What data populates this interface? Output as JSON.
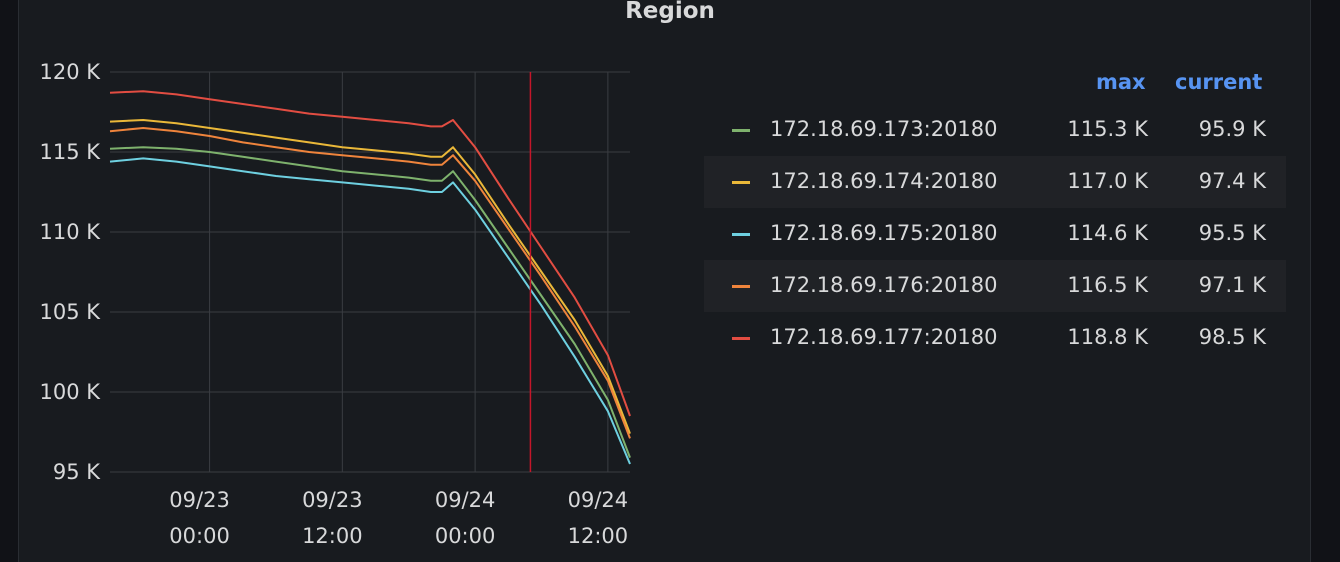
{
  "panel": {
    "title": "Region"
  },
  "chart_data": {
    "type": "line",
    "title": "Region",
    "xlabel": "",
    "ylabel": "",
    "ylim": [
      95000,
      120000
    ],
    "yticks": [
      "120 K",
      "115 K",
      "110 K",
      "105 K",
      "100 K",
      "95 K"
    ],
    "xticks": [
      {
        "date": "09/23",
        "time": "00:00"
      },
      {
        "date": "09/23",
        "time": "12:00"
      },
      {
        "date": "09/24",
        "time": "00:00"
      },
      {
        "date": "09/24",
        "time": "12:00"
      }
    ],
    "x": [
      "09/22 15:00",
      "09/22 18:00",
      "09/22 21:00",
      "09/23 00:00",
      "09/23 03:00",
      "09/23 06:00",
      "09/23 09:00",
      "09/23 12:00",
      "09/23 15:00",
      "09/23 18:00",
      "09/23 20:00",
      "09/23 21:00",
      "09/23 22:00",
      "09/24 00:00",
      "09/24 03:00",
      "09/24 06:00",
      "09/24 09:00",
      "09/24 12:00",
      "09/24 14:00"
    ],
    "grid": true,
    "series": [
      {
        "name": "172.18.69.173:20180",
        "color": "#7eb26d",
        "values": [
          115.2,
          115.3,
          115.2,
          115.0,
          114.7,
          114.4,
          114.1,
          113.8,
          113.6,
          113.4,
          113.2,
          113.2,
          113.8,
          112.0,
          109.0,
          106.0,
          103.0,
          99.5,
          95.9
        ]
      },
      {
        "name": "172.18.69.174:20180",
        "color": "#eab839",
        "values": [
          116.9,
          117.0,
          116.8,
          116.5,
          116.2,
          115.9,
          115.6,
          115.3,
          115.1,
          114.9,
          114.7,
          114.7,
          115.3,
          113.6,
          110.5,
          107.5,
          104.5,
          101.0,
          97.4
        ]
      },
      {
        "name": "172.18.69.175:20180",
        "color": "#6ed0e0",
        "values": [
          114.4,
          114.6,
          114.4,
          114.1,
          113.8,
          113.5,
          113.3,
          113.1,
          112.9,
          112.7,
          112.5,
          112.5,
          113.1,
          111.4,
          108.4,
          105.4,
          102.2,
          98.8,
          95.5
        ]
      },
      {
        "name": "172.18.69.176:20180",
        "color": "#ef843c",
        "values": [
          116.3,
          116.5,
          116.3,
          116.0,
          115.6,
          115.3,
          115.0,
          114.8,
          114.6,
          114.4,
          114.2,
          114.2,
          114.8,
          113.2,
          110.2,
          107.2,
          104.1,
          100.7,
          97.1
        ]
      },
      {
        "name": "172.18.69.177:20180",
        "color": "#e24d42",
        "values": [
          118.7,
          118.8,
          118.6,
          118.3,
          118.0,
          117.7,
          117.4,
          117.2,
          117.0,
          116.8,
          116.6,
          116.6,
          117.0,
          115.3,
          112.1,
          109.0,
          105.9,
          102.3,
          98.5
        ]
      }
    ],
    "legend": {
      "position": "right",
      "columns": [
        "max",
        "current"
      ],
      "rows": [
        {
          "name": "172.18.69.173:20180",
          "max": "115.3 K",
          "current": "95.9 K",
          "color": "#7eb26d"
        },
        {
          "name": "172.18.69.174:20180",
          "max": "117.0 K",
          "current": "97.4 K",
          "color": "#eab839"
        },
        {
          "name": "172.18.69.175:20180",
          "max": "114.6 K",
          "current": "95.5 K",
          "color": "#6ed0e0"
        },
        {
          "name": "172.18.69.176:20180",
          "max": "116.5 K",
          "current": "97.1 K",
          "color": "#ef843c"
        },
        {
          "name": "172.18.69.177:20180",
          "max": "118.8 K",
          "current": "98.5 K",
          "color": "#e24d42"
        }
      ]
    },
    "marker": {
      "x": "09/24 05:00",
      "color": "#c4162a"
    }
  }
}
